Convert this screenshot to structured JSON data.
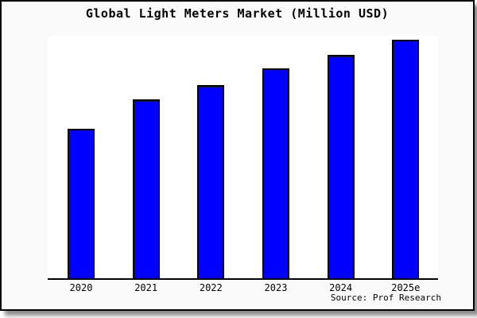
{
  "frame": {
    "background": "#fafafa",
    "border_color": "#000000"
  },
  "chart_data": {
    "type": "bar",
    "title": "Global Light Meters Market (Million USD)",
    "xlabel": "",
    "ylabel": "",
    "categories": [
      "2020",
      "2021",
      "2022",
      "2023",
      "2024",
      "2025e"
    ],
    "values_normalized_pct": [
      62.7,
      75.1,
      81.1,
      88.0,
      93.7,
      100
    ],
    "value_note": "no y-axis scale shown; values are bar heights normalized to tallest bar (2025e) = 100",
    "bar_color": "#0000ff",
    "bar_edge_color": "#000000",
    "plot_background": "#ffffff",
    "gridlines": false,
    "y_axis_visible": false,
    "legend": false,
    "source_note": "Source: Prof Research"
  }
}
